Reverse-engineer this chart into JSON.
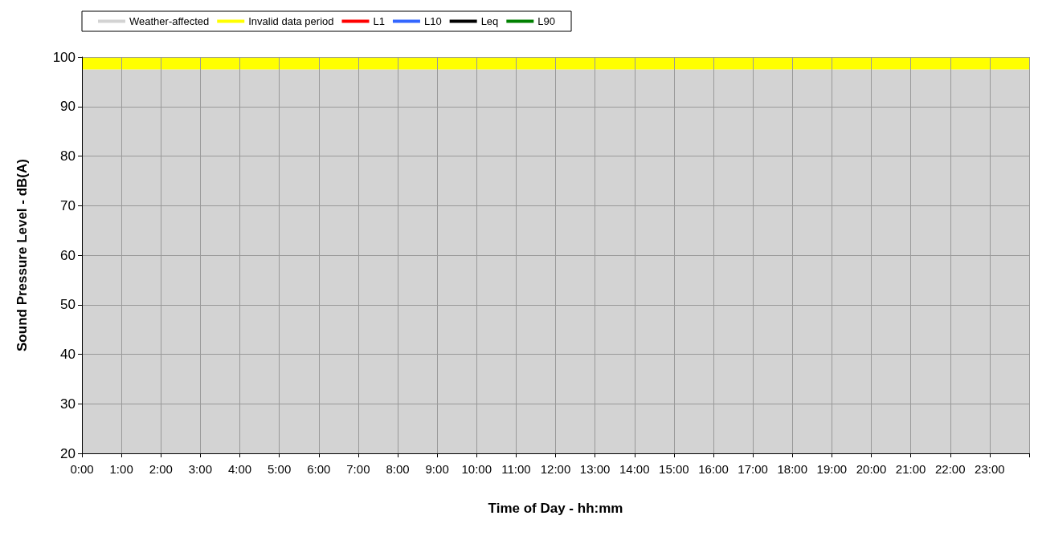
{
  "chart_data": {
    "type": "line",
    "xlabel": "Time of Day - hh:mm",
    "ylabel": "Sound Pressure Level - dB(A)",
    "categories": [
      "0:00",
      "1:00",
      "2:00",
      "3:00",
      "4:00",
      "5:00",
      "6:00",
      "7:00",
      "8:00",
      "9:00",
      "10:00",
      "11:00",
      "12:00",
      "13:00",
      "14:00",
      "15:00",
      "16:00",
      "17:00",
      "18:00",
      "19:00",
      "20:00",
      "21:00",
      "22:00",
      "23:00"
    ],
    "series": [
      {
        "name": "L1",
        "color": "#ff0000",
        "values": [
          null,
          null,
          null,
          null,
          null,
          null,
          null,
          null,
          null,
          null,
          null,
          null,
          null,
          null,
          null,
          null,
          null,
          null,
          null,
          null,
          null,
          null,
          null,
          null
        ]
      },
      {
        "name": "L10",
        "color": "#3366ff",
        "values": [
          null,
          null,
          null,
          null,
          null,
          null,
          null,
          null,
          null,
          null,
          null,
          null,
          null,
          null,
          null,
          null,
          null,
          null,
          null,
          null,
          null,
          null,
          null,
          null
        ]
      },
      {
        "name": "Leq",
        "color": "#000000",
        "values": [
          null,
          null,
          null,
          null,
          null,
          null,
          null,
          null,
          null,
          null,
          null,
          null,
          null,
          null,
          null,
          null,
          null,
          null,
          null,
          null,
          null,
          null,
          null,
          null
        ]
      },
      {
        "name": "L90",
        "color": "#008000",
        "values": [
          null,
          null,
          null,
          null,
          null,
          null,
          null,
          null,
          null,
          null,
          null,
          null,
          null,
          null,
          null,
          null,
          null,
          null,
          null,
          null,
          null,
          null,
          null,
          null
        ]
      }
    ],
    "bands": [
      {
        "axis": "y",
        "from": 20,
        "to": 97.5,
        "label": "Weather-affected",
        "color": "#d3d3d3"
      },
      {
        "axis": "y",
        "from": 97.5,
        "to": 100,
        "label": "Invalid data period",
        "color": "#ffff00"
      }
    ],
    "ylim": [
      20,
      100
    ],
    "yticks": [
      20,
      30,
      40,
      50,
      60,
      70,
      80,
      90,
      100
    ],
    "grid": true,
    "legend": "top left"
  }
}
